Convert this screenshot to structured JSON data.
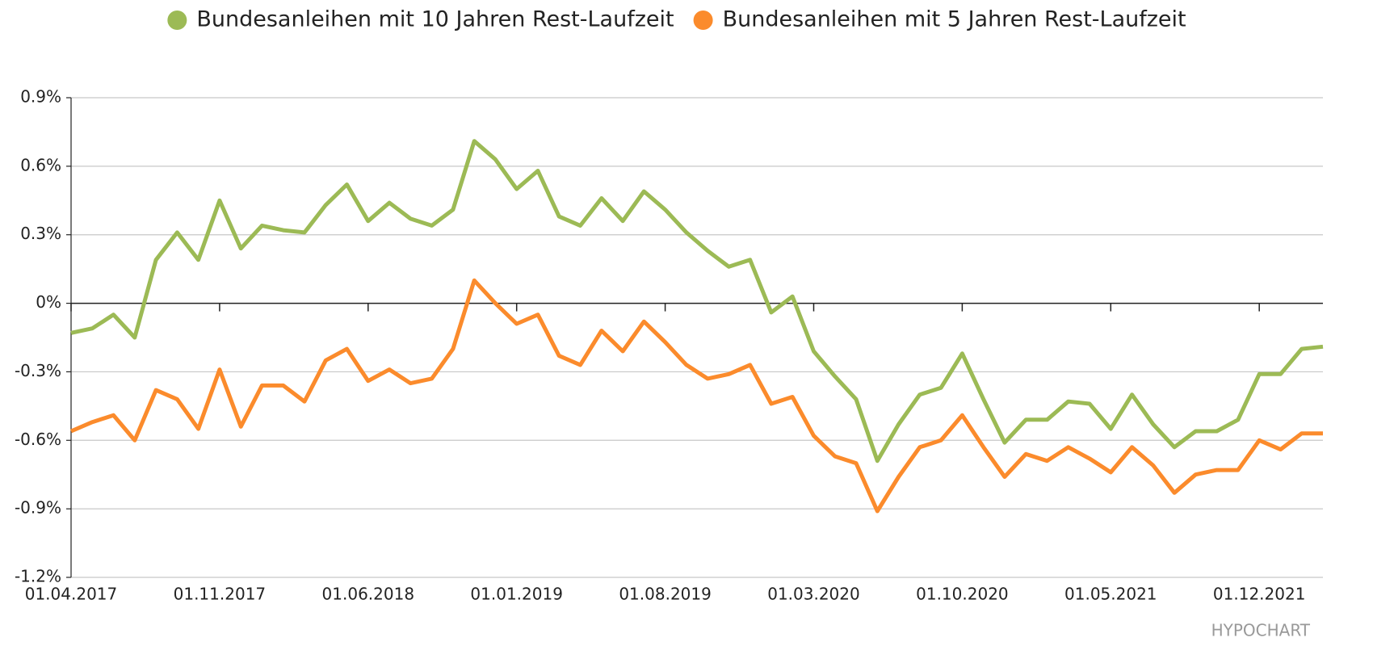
{
  "chart_data": {
    "type": "line",
    "x": [
      "01.04.2017",
      "01.05.2017",
      "01.06.2017",
      "01.07.2017",
      "01.08.2017",
      "01.09.2017",
      "01.10.2017",
      "01.11.2017",
      "01.12.2017",
      "01.01.2018",
      "01.02.2018",
      "01.03.2018",
      "01.04.2018",
      "01.05.2018",
      "01.06.2018",
      "01.07.2018",
      "01.08.2018",
      "01.09.2018",
      "01.10.2018",
      "01.11.2018",
      "01.12.2018",
      "01.01.2019",
      "01.02.2019",
      "01.03.2019",
      "01.04.2019",
      "01.05.2019",
      "01.06.2019",
      "01.07.2019",
      "01.08.2019",
      "01.09.2019",
      "01.10.2019",
      "01.11.2019",
      "01.12.2019",
      "01.01.2020",
      "01.02.2020",
      "01.03.2020",
      "01.04.2020",
      "01.05.2020",
      "01.06.2020",
      "01.07.2020",
      "01.08.2020",
      "01.09.2020",
      "01.10.2020",
      "01.11.2020",
      "01.12.2020",
      "01.01.2021",
      "01.02.2021",
      "01.03.2021",
      "01.04.2021",
      "01.05.2021",
      "01.06.2021",
      "01.07.2021",
      "01.08.2021",
      "01.09.2021",
      "01.10.2021",
      "01.11.2021",
      "01.12.2021",
      "01.01.2022",
      "01.02.2022",
      "01.03.2022"
    ],
    "xticks": [
      "01.04.2017",
      "01.11.2017",
      "01.06.2018",
      "01.01.2019",
      "01.08.2019",
      "01.03.2020",
      "01.10.2020",
      "01.05.2021",
      "01.12.2021"
    ],
    "series": [
      {
        "name": "Bundesanleihen mit 10 Jahren Rest-Laufzeit",
        "color": "#9cba55",
        "values": [
          -0.13,
          -0.11,
          -0.05,
          -0.15,
          0.19,
          0.31,
          0.19,
          0.45,
          0.24,
          0.34,
          0.32,
          0.31,
          0.43,
          0.52,
          0.36,
          0.44,
          0.37,
          0.34,
          0.41,
          0.71,
          0.63,
          0.5,
          0.58,
          0.38,
          0.34,
          0.46,
          0.36,
          0.49,
          0.41,
          0.31,
          0.23,
          0.16,
          0.19,
          -0.04,
          0.03,
          -0.21,
          -0.32,
          -0.42,
          -0.69,
          -0.53,
          -0.4,
          -0.37,
          -0.22,
          -0.42,
          -0.61,
          -0.51,
          -0.51,
          -0.43,
          -0.44,
          -0.55,
          -0.4,
          -0.53,
          -0.63,
          -0.56,
          -0.56,
          -0.51,
          -0.31,
          -0.31,
          -0.2,
          -0.19
        ]
      },
      {
        "name": "Bundesanleihen mit 5 Jahren Rest-Laufzeit",
        "color": "#fb8b2c",
        "values": [
          -0.56,
          -0.52,
          -0.49,
          -0.6,
          -0.38,
          -0.42,
          -0.55,
          -0.29,
          -0.54,
          -0.36,
          -0.36,
          -0.43,
          -0.25,
          -0.2,
          -0.34,
          -0.29,
          -0.35,
          -0.33,
          -0.2,
          0.1,
          0.0,
          -0.09,
          -0.05,
          -0.23,
          -0.27,
          -0.12,
          -0.21,
          -0.08,
          -0.17,
          -0.27,
          -0.33,
          -0.31,
          -0.27,
          -0.44,
          -0.41,
          -0.58,
          -0.67,
          -0.7,
          -0.91,
          -0.76,
          -0.63,
          -0.6,
          -0.49,
          -0.63,
          -0.76,
          -0.66,
          -0.69,
          -0.63,
          -0.68,
          -0.74,
          -0.63,
          -0.71,
          -0.83,
          -0.75,
          -0.73,
          -0.73,
          -0.6,
          -0.64,
          -0.57,
          -0.57
        ]
      }
    ],
    "ylim": [
      -1.2,
      0.9
    ],
    "yticks": [
      {
        "value": -1.2,
        "label": "-1.2%"
      },
      {
        "value": -0.9,
        "label": "-0.9%"
      },
      {
        "value": -0.6,
        "label": "-0.6%"
      },
      {
        "value": -0.3,
        "label": "-0.3%"
      },
      {
        "value": 0,
        "label": "0%"
      },
      {
        "value": 0.3,
        "label": "0.3%"
      },
      {
        "value": 0.6,
        "label": "0.6%"
      },
      {
        "value": 0.9,
        "label": "0.9%"
      }
    ],
    "grid": true,
    "watermark": "HYPOCHART"
  }
}
